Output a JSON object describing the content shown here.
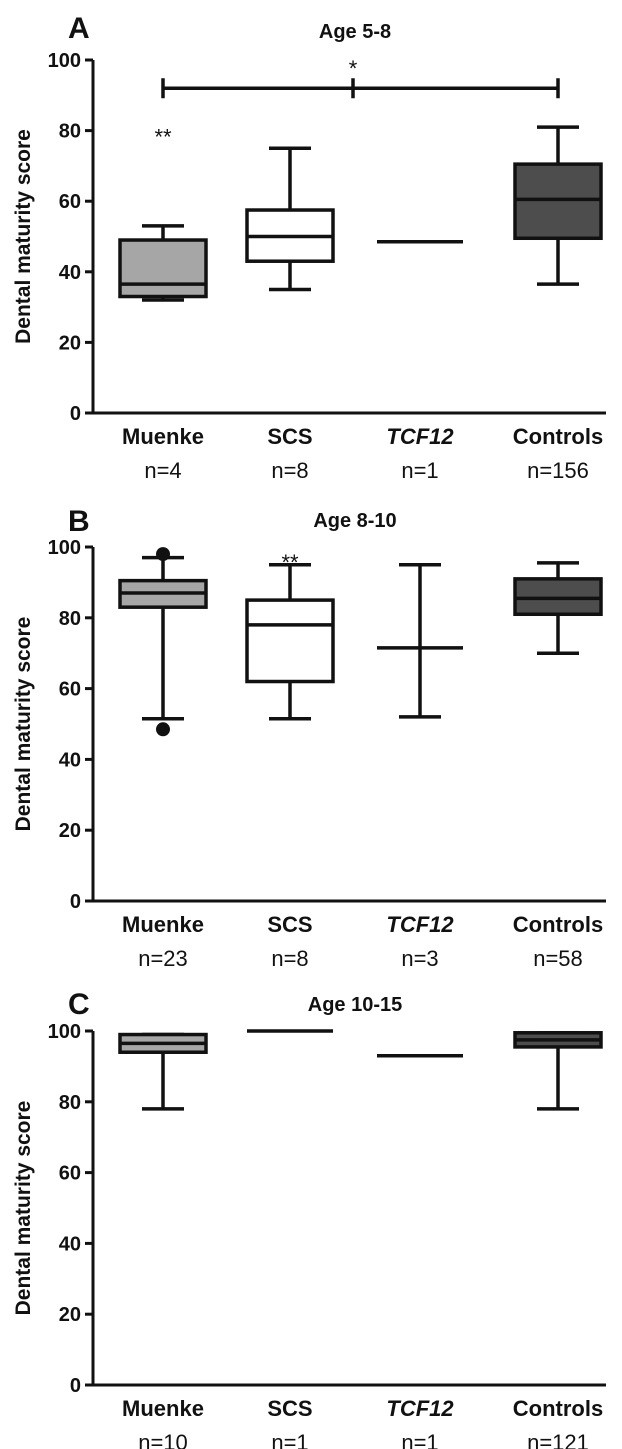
{
  "chart_data": [
    {
      "type": "box",
      "panel": "A",
      "title": "Age 5-8",
      "ylabel": "Dental maturity score",
      "ylim": [
        0,
        100
      ],
      "yticks": [
        "0",
        "20",
        "40",
        "60",
        "80",
        "100"
      ],
      "categories": [
        {
          "name": "Muenke",
          "italic": false,
          "n": "n=4",
          "fill": "#a6a6a6",
          "min": 32,
          "q1": 33,
          "median": 36.5,
          "q3": 49,
          "max": 53
        },
        {
          "name": "SCS",
          "italic": false,
          "n": "n=8",
          "fill": "#ffffff",
          "min": 35,
          "q1": 43,
          "median": 50,
          "q3": 57.5,
          "max": 75
        },
        {
          "name": "TCF12",
          "italic": true,
          "n": "n=1",
          "fill": "#ffffff",
          "single": 48.5
        },
        {
          "name": "Controls",
          "italic": false,
          "n": "n=156",
          "fill": "#4d4d4d",
          "min": 36.5,
          "q1": 49.5,
          "median": 60.5,
          "q3": 70.5,
          "max": 81
        }
      ],
      "annotations": [
        {
          "text": "**",
          "category": 0,
          "y": 80
        },
        {
          "text": "*",
          "bracket_from": 0,
          "bracket_to": 3,
          "y": 92,
          "tick_at": 2
        }
      ]
    },
    {
      "type": "box",
      "panel": "B",
      "title": "Age 8-10",
      "ylabel": "Dental maturity score",
      "ylim": [
        0,
        100
      ],
      "yticks": [
        "0",
        "20",
        "40",
        "60",
        "80",
        "100"
      ],
      "categories": [
        {
          "name": "Muenke",
          "italic": false,
          "n": "n=23",
          "fill": "#a6a6a6",
          "min": 51.5,
          "q1": 83,
          "median": 87,
          "q3": 90.5,
          "max": 97,
          "outliers": [
            98,
            48.5
          ]
        },
        {
          "name": "SCS",
          "italic": false,
          "n": "n=8",
          "fill": "#ffffff",
          "min": 51.5,
          "q1": 62,
          "median": 78,
          "q3": 85,
          "max": 95
        },
        {
          "name": "TCF12",
          "italic": true,
          "n": "n=3",
          "fill": "#ffffff",
          "min": 52,
          "median": 71.5,
          "max": 95,
          "no_box": true
        },
        {
          "name": "Controls",
          "italic": false,
          "n": "n=58",
          "fill": "#4d4d4d",
          "min": 70,
          "q1": 81,
          "median": 85.5,
          "q3": 91,
          "max": 95.5
        }
      ],
      "annotations": [
        {
          "text": "**",
          "category": 1,
          "y": 97.5
        }
      ]
    },
    {
      "type": "box",
      "panel": "C",
      "title": "Age 10-15",
      "ylabel": "Dental maturity score",
      "ylim": [
        0,
        100
      ],
      "yticks": [
        "0",
        "20",
        "40",
        "60",
        "80",
        "100"
      ],
      "categories": [
        {
          "name": "Muenke",
          "italic": false,
          "n": "n=10",
          "fill": "#a6a6a6",
          "min": 78,
          "q1": 94,
          "median": 96.5,
          "q3": 99,
          "max": 99
        },
        {
          "name": "SCS",
          "italic": false,
          "n": "n=1",
          "fill": "#ffffff",
          "single": 100
        },
        {
          "name": "TCF12",
          "italic": true,
          "n": "n=1",
          "fill": "#ffffff",
          "single": 93
        },
        {
          "name": "Controls",
          "italic": false,
          "n": "n=121",
          "fill": "#4d4d4d",
          "min": 78,
          "q1": 95.5,
          "median": 97.5,
          "q3": 99.5,
          "max": 99.5
        }
      ],
      "annotations": []
    }
  ]
}
